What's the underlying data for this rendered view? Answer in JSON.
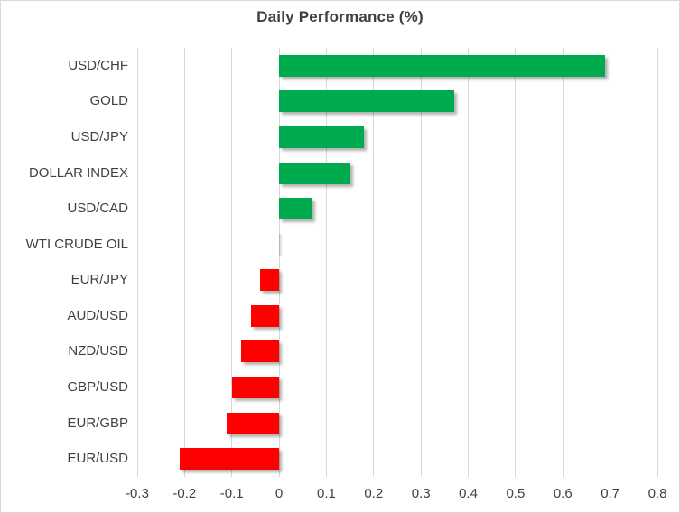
{
  "title": "Daily Performance (%)",
  "colors": {
    "positive": "#00AB4F",
    "negative": "#FF0000",
    "text": "#404040",
    "gridline": "#D9D9D9",
    "border": "#D9D9D9"
  },
  "chart_data": {
    "type": "bar",
    "orientation": "horizontal",
    "title": "Daily Performance (%)",
    "categories": [
      "USD/CHF",
      "GOLD",
      "USD/JPY",
      "DOLLAR INDEX",
      "USD/CAD",
      "WTI CRUDE OIL",
      "EUR/JPY",
      "AUD/USD",
      "NZD/USD",
      "GBP/USD",
      "EUR/GBP",
      "EUR/USD"
    ],
    "values": [
      0.69,
      0.37,
      0.18,
      0.15,
      0.07,
      0.0,
      -0.04,
      -0.06,
      -0.08,
      -0.1,
      -0.11,
      -0.21
    ],
    "xlabel": "",
    "ylabel": "",
    "xlim": [
      -0.3,
      0.8
    ],
    "x_ticks": [
      -0.3,
      -0.2,
      -0.1,
      0,
      0.1,
      0.2,
      0.3,
      0.4,
      0.5,
      0.6,
      0.7,
      0.8
    ],
    "x_tick_labels": [
      "-0.3",
      "-0.2",
      "-0.1",
      "0",
      "0.1",
      "0.2",
      "0.3",
      "0.4",
      "0.5",
      "0.6",
      "0.7",
      "0.8"
    ],
    "grid": "vertical-only",
    "legend": "none",
    "bar_style": "drop-shadow"
  }
}
